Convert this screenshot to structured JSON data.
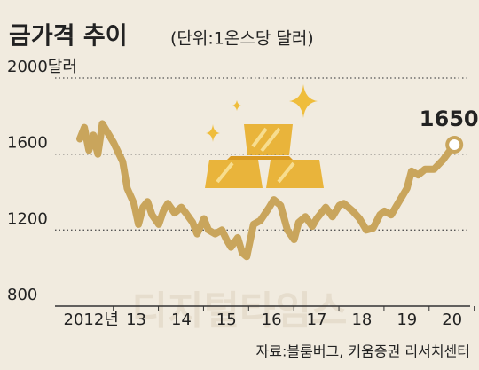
{
  "chart_data": {
    "type": "line",
    "title": "금가격 추이",
    "subtitle": "(단위:1온스당 달러)",
    "source": "자료:블룸버그, 키움증권 리서치센터",
    "watermark": "디지털타임스",
    "annotation": "1650",
    "x": [
      2012.25,
      2012.35,
      2012.45,
      2012.55,
      2012.65,
      2012.75,
      2012.85,
      2013.0,
      2013.1,
      2013.2,
      2013.3,
      2013.45,
      2013.55,
      2013.65,
      2013.75,
      2013.85,
      2014.0,
      2014.1,
      2014.2,
      2014.35,
      2014.5,
      2014.6,
      2014.75,
      2014.85,
      2015.0,
      2015.1,
      2015.25,
      2015.4,
      2015.5,
      2015.6,
      2015.75,
      2015.85,
      2015.95,
      2016.1,
      2016.25,
      2016.45,
      2016.55,
      2016.7,
      2016.85,
      2017.0,
      2017.1,
      2017.25,
      2017.4,
      2017.5,
      2017.7,
      2017.85,
      2018.0,
      2018.1,
      2018.3,
      2018.45,
      2018.6,
      2018.75,
      2018.9,
      2019.0,
      2019.15,
      2019.3,
      2019.5,
      2019.6,
      2019.75,
      2019.9,
      2020.1,
      2020.3,
      2020.55
    ],
    "series": [
      {
        "name": "금가격",
        "color": "#c9a55c",
        "values": [
          1680,
          1740,
          1620,
          1700,
          1600,
          1760,
          1720,
          1660,
          1610,
          1560,
          1420,
          1340,
          1230,
          1320,
          1350,
          1280,
          1230,
          1300,
          1340,
          1290,
          1320,
          1290,
          1240,
          1180,
          1260,
          1200,
          1180,
          1200,
          1150,
          1110,
          1160,
          1080,
          1060,
          1230,
          1250,
          1320,
          1360,
          1330,
          1200,
          1150,
          1240,
          1270,
          1220,
          1260,
          1320,
          1270,
          1330,
          1340,
          1300,
          1260,
          1200,
          1210,
          1280,
          1300,
          1280,
          1340,
          1420,
          1510,
          1490,
          1520,
          1520,
          1570,
          1650
        ]
      }
    ],
    "xlim": [
      2011.7,
      2020.9
    ],
    "xticks": [
      {
        "value": 2012.5,
        "label": "2012년"
      },
      {
        "value": 2013.5,
        "label": "13"
      },
      {
        "value": 2014.5,
        "label": "14"
      },
      {
        "value": 2015.5,
        "label": "15"
      },
      {
        "value": 2016.5,
        "label": "16"
      },
      {
        "value": 2017.5,
        "label": "17"
      },
      {
        "value": 2018.5,
        "label": "18"
      },
      {
        "value": 2019.5,
        "label": "19"
      },
      {
        "value": 2020.5,
        "label": "20"
      }
    ],
    "ylim": [
      800,
      2000
    ],
    "yticks": [
      800,
      1200,
      1600,
      {
        "value": 2000,
        "label": "2000달러"
      }
    ],
    "grid": true
  }
}
